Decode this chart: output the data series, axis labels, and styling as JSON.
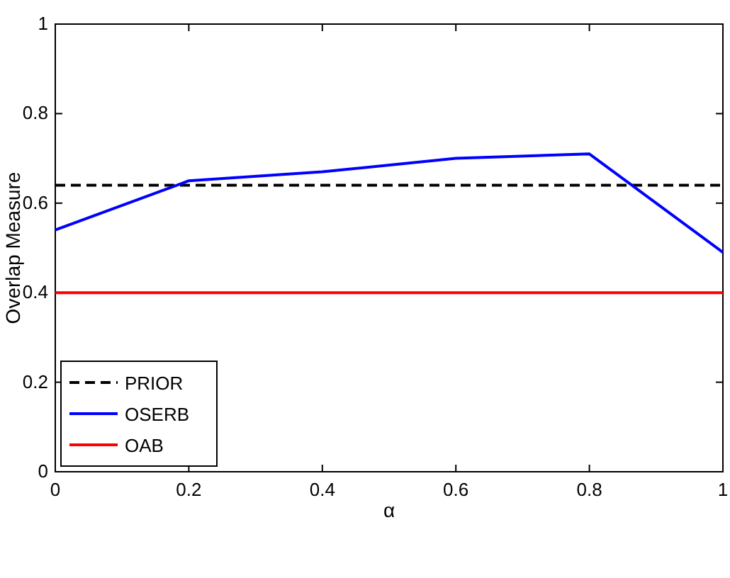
{
  "chart_data": {
    "type": "line",
    "xlabel": "α",
    "ylabel": "Overlap Measure",
    "x": [
      0,
      0.2,
      0.4,
      0.6,
      0.8,
      1
    ],
    "series": [
      {
        "name": "PRIOR",
        "color": "#000000",
        "values": [
          0.64,
          0.64,
          0.64,
          0.64,
          0.64,
          0.64
        ],
        "line_style": "dashed"
      },
      {
        "name": "OSERB",
        "color": "#0000ff",
        "values": [
          0.54,
          0.65,
          0.67,
          0.7,
          0.71,
          0.49
        ],
        "line_style": "solid"
      },
      {
        "name": "OAB",
        "color": "#ff0000",
        "values": [
          0.4,
          0.4,
          0.4,
          0.4,
          0.4,
          0.4
        ],
        "line_style": "solid"
      }
    ],
    "xlim": [
      0,
      1
    ],
    "xticks": [
      0,
      0.2,
      0.4,
      0.6,
      0.8,
      1
    ],
    "ylim": [
      0,
      1
    ],
    "yticks": [
      0,
      0.2,
      0.4,
      0.6,
      0.8,
      1
    ],
    "legend": "bottom left",
    "grid": false,
    "marker": "none"
  }
}
